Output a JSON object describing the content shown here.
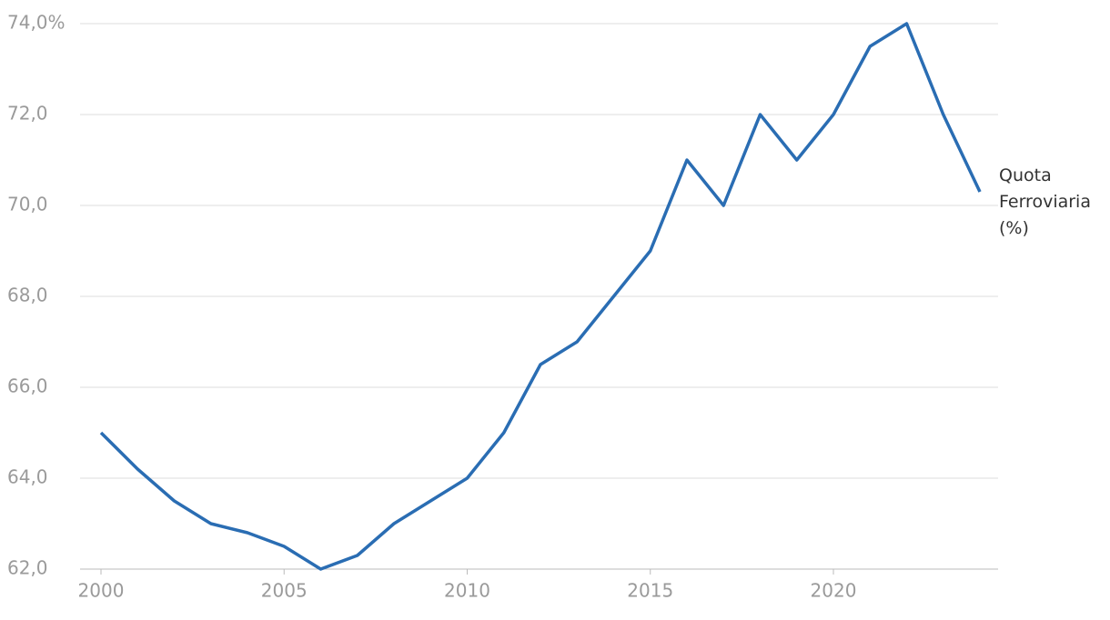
{
  "chart_data": {
    "type": "line",
    "x": [
      2000,
      2001,
      2002,
      2003,
      2004,
      2005,
      2006,
      2007,
      2008,
      2009,
      2010,
      2011,
      2012,
      2013,
      2014,
      2015,
      2016,
      2017,
      2018,
      2019,
      2020,
      2021,
      2022,
      2023,
      2024
    ],
    "series": [
      {
        "name": "Quota Ferroviaria (%)",
        "color": "#2a6db3",
        "values": [
          65.0,
          64.2,
          63.5,
          63.0,
          62.8,
          62.5,
          62.0,
          62.3,
          63.0,
          63.5,
          64.0,
          65.0,
          66.5,
          67.0,
          68.0,
          69.0,
          71.0,
          70.0,
          72.0,
          71.0,
          72.0,
          73.5,
          74.0,
          72.0,
          70.3
        ]
      }
    ],
    "xlim": [
      2000,
      2024
    ],
    "xticks": [
      2000,
      2005,
      2010,
      2015,
      2020
    ],
    "ylim": [
      62,
      74
    ],
    "yticks": [
      {
        "value": 62,
        "label": "62,0"
      },
      {
        "value": 64,
        "label": "64,0"
      },
      {
        "value": 66,
        "label": "66,0"
      },
      {
        "value": 68,
        "label": "68,0"
      },
      {
        "value": 70,
        "label": "70,0"
      },
      {
        "value": 72,
        "label": "72,0"
      },
      {
        "value": 74,
        "label": "74,0%"
      }
    ],
    "grid": true
  }
}
